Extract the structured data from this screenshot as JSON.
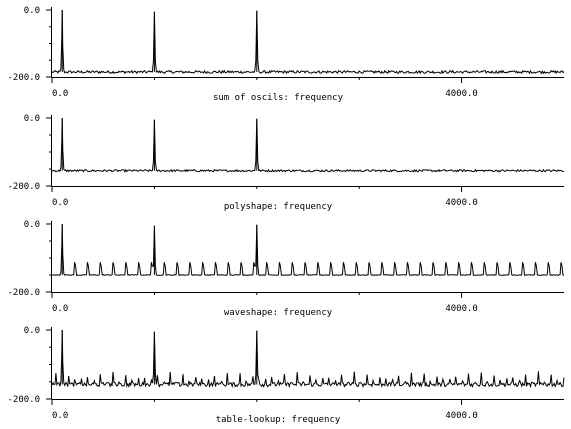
{
  "chart_data": [
    {
      "type": "line",
      "title": "",
      "xlabel": "sum of oscils: frequency",
      "ylabel": "",
      "x_ticks": [
        "0.0",
        "4000.0"
      ],
      "y_ticks": [
        "0.0",
        "-200.0"
      ],
      "xlim": [
        0,
        5000
      ],
      "ylim": [
        -200,
        0
      ],
      "grid": false,
      "series": [
        {
          "baseline": -185,
          "harmonic_spacing": 0,
          "harmonic_peak": null,
          "noise": 4,
          "peaks": [
            {
              "x": 100,
              "y": 0
            },
            {
              "x": 1000,
              "y": -5
            },
            {
              "x": 2000,
              "y": -2
            }
          ]
        }
      ]
    },
    {
      "type": "line",
      "title": "",
      "xlabel": "polyshape: frequency",
      "ylabel": "",
      "x_ticks": [
        "0.0",
        "4000.0"
      ],
      "y_ticks": [
        "0.0",
        "-200.0"
      ],
      "xlim": [
        0,
        5000
      ],
      "ylim": [
        -200,
        0
      ],
      "grid": false,
      "series": [
        {
          "baseline": -155,
          "harmonic_spacing": 0,
          "harmonic_peak": null,
          "noise": 3,
          "peaks": [
            {
              "x": 100,
              "y": 0
            },
            {
              "x": 1000,
              "y": -5
            },
            {
              "x": 2000,
              "y": -2
            }
          ]
        }
      ]
    },
    {
      "type": "line",
      "title": "",
      "xlabel": "waveshape: frequency",
      "ylabel": "",
      "x_ticks": [
        "0.0",
        "4000.0"
      ],
      "y_ticks": [
        "0.0",
        "-200.0"
      ],
      "xlim": [
        0,
        5000
      ],
      "ylim": [
        -200,
        0
      ],
      "grid": false,
      "series": [
        {
          "baseline": -150,
          "harmonic_spacing": 125,
          "harmonic_peak": -82,
          "noise": 1,
          "peaks": [
            {
              "x": 100,
              "y": 0
            },
            {
              "x": 1000,
              "y": -5
            },
            {
              "x": 2000,
              "y": -2
            }
          ]
        }
      ]
    },
    {
      "type": "line",
      "title": "",
      "xlabel": "table-lookup: frequency",
      "ylabel": "",
      "x_ticks": [
        "0.0",
        "4000.0"
      ],
      "y_ticks": [
        "0.0",
        "-200.0"
      ],
      "xlim": [
        0,
        5000
      ],
      "ylim": [
        -200,
        0
      ],
      "grid": false,
      "series": [
        {
          "baseline": -158,
          "harmonic_spacing": 62,
          "harmonic_peak": -120,
          "noise": 6,
          "peaks": [
            {
              "x": 100,
              "y": 0
            },
            {
              "x": 1000,
              "y": -5
            },
            {
              "x": 2000,
              "y": -2
            }
          ]
        }
      ]
    }
  ]
}
